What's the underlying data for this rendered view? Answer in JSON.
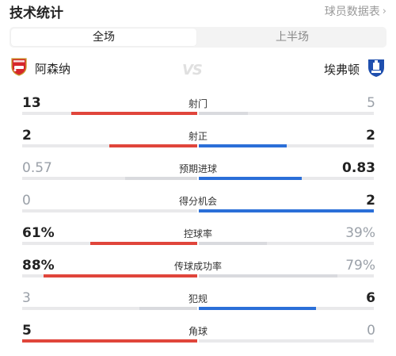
{
  "header": {
    "title": "技术统计",
    "link_label": "球员数据表"
  },
  "tabs": [
    {
      "label": "全场",
      "active": true
    },
    {
      "label": "上半场",
      "active": false
    }
  ],
  "teams": {
    "home": "阿森纳",
    "away": "埃弗顿",
    "vs": "VS"
  },
  "colors": {
    "home": "#e0453b",
    "away": "#2b6fd8",
    "neutral": "#d9dade",
    "track": "#e9e9eb"
  },
  "stats": [
    {
      "label": "射门",
      "home": "13",
      "away": "5",
      "home_share": 0.72,
      "away_share": 0.28
    },
    {
      "label": "射正",
      "home": "2",
      "away": "2",
      "home_share": 0.5,
      "away_share": 0.5
    },
    {
      "label": "预期进球",
      "home": "0.57",
      "away": "0.83",
      "home_share": 0.41,
      "away_share": 0.59
    },
    {
      "label": "得分机会",
      "home": "0",
      "away": "2",
      "home_share": 0.0,
      "away_share": 1.0
    },
    {
      "label": "控球率",
      "home": "61%",
      "away": "39%",
      "home_share": 0.61,
      "away_share": 0.39
    },
    {
      "label": "传球成功率",
      "home": "88%",
      "away": "79%",
      "home_share": 0.88,
      "away_share": 0.79
    },
    {
      "label": "犯规",
      "home": "3",
      "away": "6",
      "home_share": 0.33,
      "away_share": 0.67
    },
    {
      "label": "角球",
      "home": "5",
      "away": "0",
      "home_share": 1.0,
      "away_share": 0.0
    }
  ]
}
